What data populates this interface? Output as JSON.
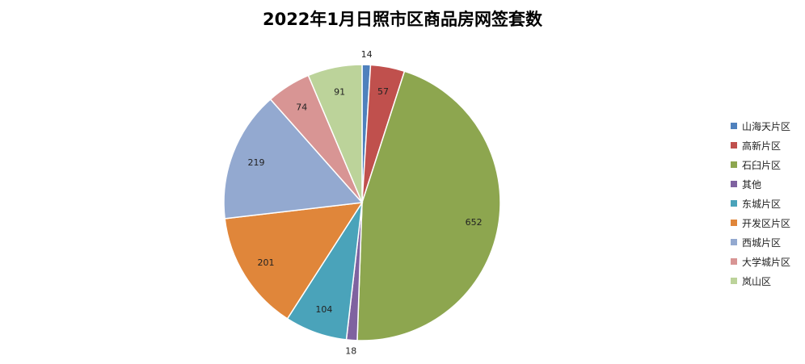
{
  "chart_data": {
    "type": "pie",
    "title": "2022年1月日照市区商品房网签套数",
    "categories": [
      "山海天片区",
      "高新片区",
      "石臼片区",
      "其他",
      "东城片区",
      "开发区片区",
      "西城片区",
      "大学城片区",
      "岚山区"
    ],
    "values": [
      14,
      57,
      652,
      18,
      104,
      201,
      219,
      74,
      91
    ],
    "colors": [
      "#4F81BD",
      "#C0504D",
      "#8DA64F",
      "#7F62A0",
      "#4AA3BA",
      "#E0863A",
      "#93A9D0",
      "#D89594",
      "#BCD39A"
    ],
    "legend_position": "right"
  }
}
